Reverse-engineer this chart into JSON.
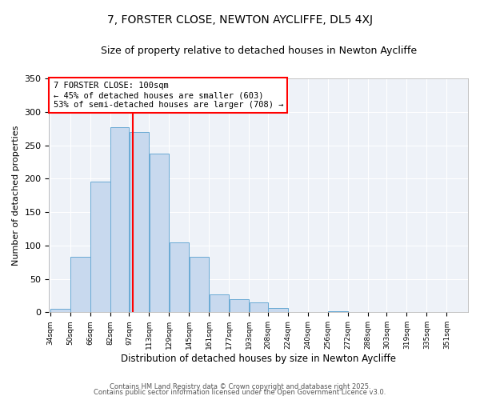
{
  "title": "7, FORSTER CLOSE, NEWTON AYCLIFFE, DL5 4XJ",
  "subtitle": "Size of property relative to detached houses in Newton Aycliffe",
  "xlabel": "Distribution of detached houses by size in Newton Aycliffe",
  "ylabel": "Number of detached properties",
  "categories": [
    "34sqm",
    "50sqm",
    "66sqm",
    "82sqm",
    "97sqm",
    "113sqm",
    "129sqm",
    "145sqm",
    "161sqm",
    "177sqm",
    "193sqm",
    "208sqm",
    "224sqm",
    "240sqm",
    "256sqm",
    "272sqm",
    "288sqm",
    "303sqm",
    "319sqm",
    "335sqm",
    "351sqm"
  ],
  "bar_edges": [
    34,
    50,
    66,
    82,
    97,
    113,
    129,
    145,
    161,
    177,
    193,
    208,
    224,
    240,
    256,
    272,
    288,
    303,
    319,
    335,
    351
  ],
  "bar_heights": [
    5,
    83,
    195,
    277,
    270,
    237,
    104,
    83,
    27,
    20,
    15,
    6,
    0,
    0,
    2,
    1,
    0,
    0,
    0,
    0
  ],
  "bar_color": "#c8d9ee",
  "bar_edge_color": "#6aaad4",
  "vline_x": 100,
  "vline_color": "red",
  "ylim": [
    0,
    350
  ],
  "yticks": [
    0,
    50,
    100,
    150,
    200,
    250,
    300,
    350
  ],
  "annotation_title": "7 FORSTER CLOSE: 100sqm",
  "annotation_line1": "← 45% of detached houses are smaller (603)",
  "annotation_line2": "53% of semi-detached houses are larger (708) →",
  "annotation_box_color": "#ffffff",
  "annotation_box_edge": "red",
  "footer1": "Contains HM Land Registry data © Crown copyright and database right 2025.",
  "footer2": "Contains public sector information licensed under the Open Government Licence v3.0.",
  "bg_color": "#eef2f8",
  "fig_bg_color": "#ffffff",
  "grid_color": "#ffffff"
}
